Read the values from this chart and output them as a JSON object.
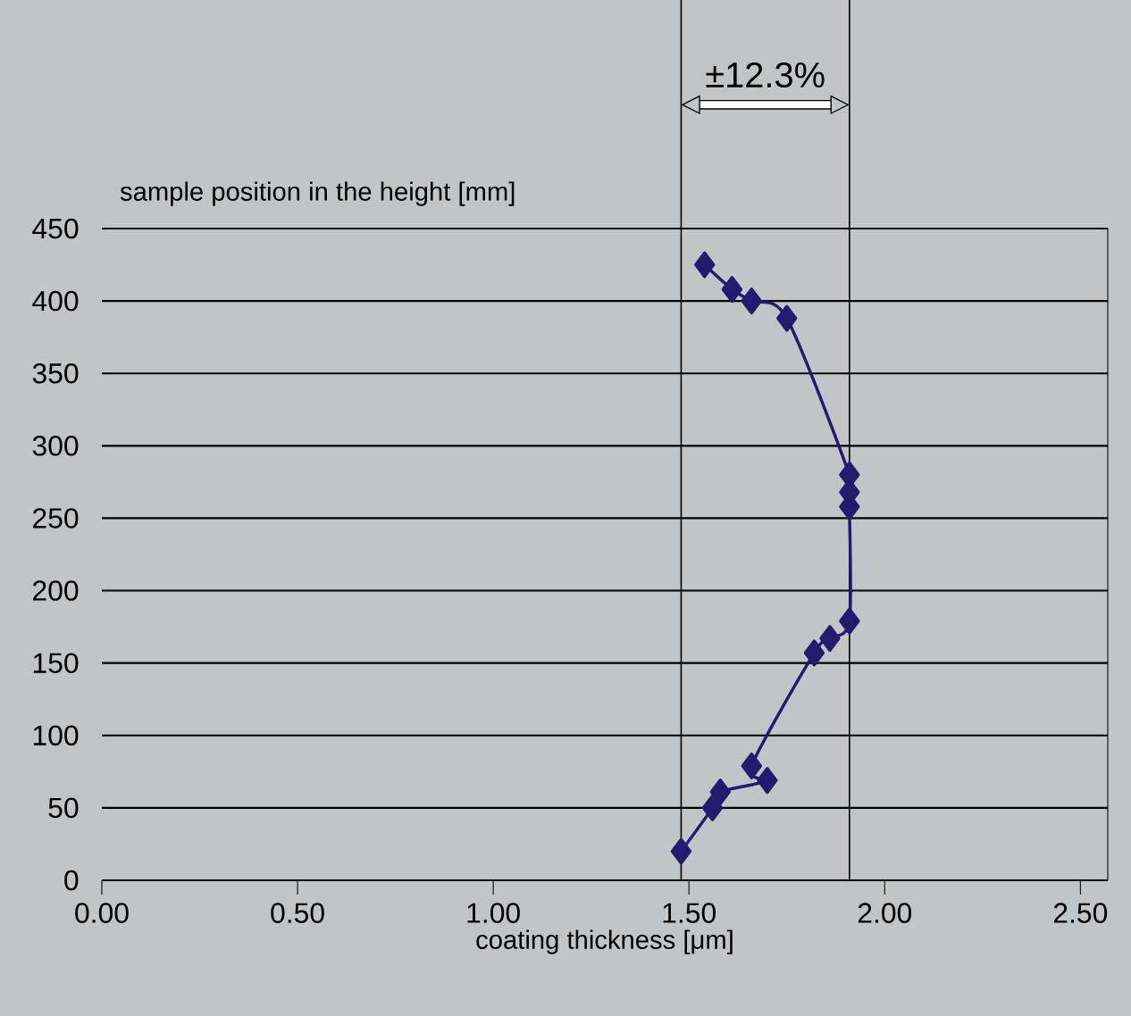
{
  "chart_data": {
    "type": "line",
    "xlabel": "coating thickness [μm]",
    "ylabel": "sample position in the height [mm]",
    "series": [
      {
        "color": "#241a6e",
        "x": [
          1.48,
          1.56,
          1.58,
          1.7,
          1.66,
          1.82,
          1.86,
          1.91,
          1.91,
          1.91,
          1.91,
          1.75,
          1.66,
          1.61,
          1.54
        ],
        "values": [
          20,
          50,
          61,
          69,
          79,
          157,
          167,
          179,
          258,
          268,
          280,
          388,
          400,
          408,
          425
        ]
      }
    ],
    "xlim": [
      0,
      2.57
    ],
    "xticks": [
      {
        "value": 0,
        "label": "0.00"
      },
      {
        "value": 0.5,
        "label": "0.50"
      },
      {
        "value": 1,
        "label": "1.00"
      },
      {
        "value": 1.5,
        "label": "1.50"
      },
      {
        "value": 2,
        "label": "2.00"
      },
      {
        "value": 2.5,
        "label": "2.50"
      }
    ],
    "ylim": [
      0,
      450
    ],
    "yticks": [
      0,
      50,
      100,
      150,
      200,
      250,
      300,
      350,
      400,
      450
    ],
    "grid": "y",
    "marker": "diamond",
    "line_style": "solid",
    "ref_lines": [
      {
        "axis": "x",
        "value": 1.48,
        "color": "#000000"
      },
      {
        "axis": "x",
        "value": 1.91,
        "color": "#000000"
      }
    ],
    "annotations": [
      "±12.3%"
    ]
  }
}
